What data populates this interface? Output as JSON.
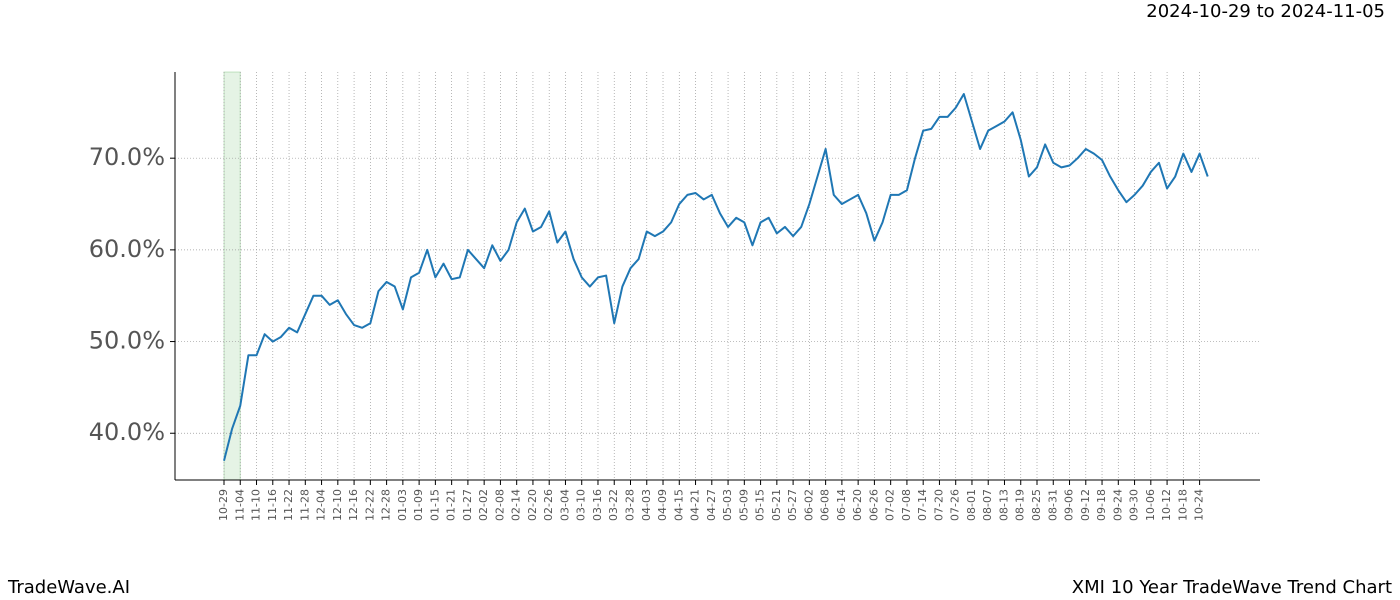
{
  "chart_data": {
    "type": "line",
    "header_right": "2024-10-29 to 2024-11-05",
    "footer_left": "TradeWave.AI",
    "footer_right": "XMI 10 Year TradeWave Trend Chart",
    "categories": [
      "10-29",
      null,
      "11-04",
      null,
      "11-10",
      null,
      "11-16",
      null,
      "11-22",
      null,
      "11-28",
      null,
      "12-04",
      null,
      "12-10",
      null,
      "12-16",
      null,
      "12-22",
      null,
      "12-28",
      null,
      "01-03",
      null,
      "01-09",
      null,
      "01-15",
      null,
      "01-21",
      null,
      "01-27",
      null,
      "02-02",
      null,
      "02-08",
      null,
      "02-14",
      null,
      "02-20",
      null,
      "02-26",
      null,
      "03-04",
      null,
      "03-10",
      null,
      "03-16",
      null,
      "03-22",
      null,
      "03-28",
      null,
      "04-03",
      null,
      "04-09",
      null,
      "04-15",
      null,
      "04-21",
      null,
      "04-27",
      null,
      "05-03",
      null,
      "05-09",
      null,
      "05-15",
      null,
      "05-21",
      null,
      "05-27",
      null,
      "06-02",
      null,
      "06-08",
      null,
      "06-14",
      null,
      "06-20",
      null,
      "06-26",
      null,
      "07-02",
      null,
      "07-08",
      null,
      "07-14",
      null,
      "07-20",
      null,
      "07-26",
      null,
      "08-01",
      null,
      "08-07",
      null,
      "08-13",
      null,
      "08-19",
      null,
      "08-25",
      null,
      "08-31",
      null,
      "09-06",
      null,
      "09-12",
      null,
      "09-18",
      null,
      "09-24",
      null,
      "09-30",
      null,
      "10-06",
      null,
      "10-12",
      null,
      "10-18",
      null,
      "10-24",
      null
    ],
    "series": [
      {
        "color": "#1f77b4",
        "values": [
          37,
          40.5,
          43,
          48.5,
          48.5,
          50.8,
          50,
          50.5,
          51.5,
          51,
          53,
          55,
          55,
          54,
          54.5,
          53,
          51.8,
          51.5,
          52,
          55.5,
          56.5,
          56,
          53.5,
          57,
          57.5,
          60,
          57,
          58.5,
          56.8,
          57,
          60,
          59,
          58,
          60.5,
          58.8,
          60,
          63,
          64.5,
          62,
          62.5,
          64.2,
          60.8,
          62,
          59,
          57,
          56,
          57,
          57.2,
          52,
          56,
          58,
          59,
          62,
          61.5,
          62,
          63,
          65,
          66,
          66.2,
          65.5,
          66,
          64,
          62.5,
          63.5,
          63,
          60.5,
          63,
          63.5,
          61.8,
          62.5,
          61.5,
          62.5,
          65,
          68,
          71,
          66,
          65,
          65.5,
          66,
          64,
          61,
          63,
          66,
          66,
          66.5,
          70,
          73,
          73.2,
          74.5,
          74.5,
          75.5,
          77,
          74,
          71,
          73,
          73.5,
          74,
          75,
          72,
          68,
          69,
          71.5,
          69.5,
          69,
          69.2,
          70,
          71,
          70.5,
          69.8,
          68,
          66.5,
          65.2,
          66,
          67,
          68.5,
          69.5,
          66.7,
          68,
          70.5,
          68.5,
          70.5,
          68
        ]
      }
    ],
    "highlight": {
      "from": 0,
      "to": 2,
      "color": "#2ca02c"
    },
    "ylim": [
      34.9,
      79.4
    ],
    "yticks": [
      {
        "value": 40,
        "label": "40.0%"
      },
      {
        "value": 50,
        "label": "50.0%"
      },
      {
        "value": 60,
        "label": "60.0%"
      },
      {
        "value": 70,
        "label": "70.0%"
      }
    ],
    "grid": true
  }
}
